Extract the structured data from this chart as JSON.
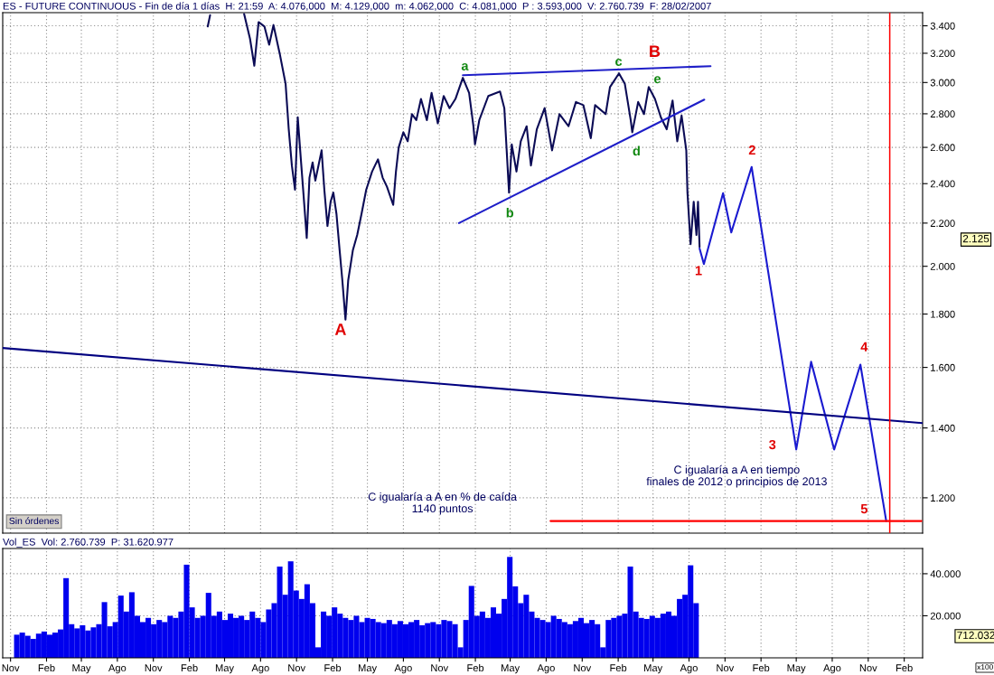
{
  "chart_data": [
    {
      "type": "line",
      "title": "ES - FUTURE CONTINUOUS - Fin de día 1 días  H: 21:59  A: 4.076,000  M: 4.129,000  m: 4.062,000  C: 4.081,000  P : 3.593,000  V: 2.760.739  F: 28/02/2007",
      "series": [
        {
          "color": "#0b0b55",
          "x": [
            "2008-03-19",
            "2008-03-25",
            "2008-05-01",
            "2008-06-20",
            "2008-07-05",
            "2008-07-16",
            "2008-07-27",
            "2008-08-11",
            "2008-08-23",
            "2008-09-03",
            "2008-09-19",
            "2008-10-04",
            "2008-10-12",
            "2008-10-20",
            "2008-10-28",
            "2008-11-04",
            "2008-11-12",
            "2008-11-19",
            "2008-11-27",
            "2008-12-04",
            "2008-12-12",
            "2008-12-19",
            "2008-12-27",
            "2009-01-04",
            "2009-01-11",
            "2009-01-19",
            "2009-01-27",
            "2009-02-03",
            "2009-02-11",
            "2009-02-19",
            "2009-02-26",
            "2009-03-06",
            "2009-03-13",
            "2009-03-25",
            "2009-04-05",
            "2009-04-16",
            "2009-04-28",
            "2009-05-13",
            "2009-05-28",
            "2009-06-09",
            "2009-06-20",
            "2009-07-06",
            "2009-07-13",
            "2009-07-20",
            "2009-08-01",
            "2009-08-12",
            "2009-08-23",
            "2009-09-03",
            "2009-09-15",
            "2009-09-30",
            "2009-10-12",
            "2009-10-28",
            "2009-11-12",
            "2009-11-27",
            "2009-12-12",
            "2009-12-31",
            "2010-01-16",
            "2010-01-27",
            "2010-01-31",
            "2010-02-11",
            "2010-03-06",
            "2010-04-05",
            "2010-04-16",
            "2010-04-28",
            "2010-05-05",
            "2010-05-17",
            "2010-05-28",
            "2010-06-12",
            "2010-06-23",
            "2010-07-08",
            "2010-07-28",
            "2010-08-16",
            "2010-09-04",
            "2010-09-27",
            "2010-10-16",
            "2010-11-04",
            "2010-11-23",
            "2010-12-04",
            "2010-12-31",
            "2011-01-11",
            "2011-02-03",
            "2011-02-18",
            "2011-03-05",
            "2011-03-09",
            "2011-03-24",
            "2011-04-08",
            "2011-04-20",
            "2011-05-06",
            "2011-05-21",
            "2011-06-05",
            "2011-06-20",
            "2011-07-02",
            "2011-07-13",
            "2011-07-25",
            "2011-07-28",
            "2011-08-05",
            "2011-08-13",
            "2011-08-20",
            "2011-08-24",
            "2011-08-28"
          ],
          "values": [
            3395,
            3480,
            null,
            3490,
            3305,
            3113,
            3428,
            3394,
            3261,
            3406,
            3197,
            2991,
            2706,
            2498,
            2368,
            2779,
            2532,
            2337,
            2129,
            2432,
            2515,
            2416,
            2498,
            2583,
            2368,
            2186,
            2306,
            2353,
            2245,
            2073,
            1939,
            1778,
            1939,
            2073,
            2143,
            2245,
            2368,
            2465,
            2532,
            2432,
            2384,
            2290,
            2465,
            2600,
            2688,
            2635,
            2798,
            2761,
            2893,
            2761,
            2932,
            2742,
            2912,
            2835,
            2893,
            3031,
            2932,
            2724,
            2617,
            2761,
            2912,
            2941,
            2835,
            2353,
            2617,
            2465,
            2635,
            2724,
            2498,
            2706,
            2835,
            2583,
            2798,
            2724,
            2874,
            2854,
            2653,
            2854,
            2798,
            2970,
            3061,
            2991,
            2761,
            2688,
            2874,
            2798,
            2970,
            2893,
            2779,
            2706,
            2883,
            2635,
            2789,
            2583,
            2353,
            2100,
            2306,
            2143,
            2306,
            2087
          ]
        },
        {
          "color": "#1a1ad0",
          "x": [
            "2011-08-28",
            "2011-09-08",
            "2011-10-27",
            "2011-11-17",
            "2012-01-08",
            "2012-05-01",
            "2012-06-08",
            "2012-08-06",
            "2012-10-12",
            "2012-12-17"
          ],
          "values": [
            2080,
            2010,
            2350,
            2155,
            2490,
            1335,
            1620,
            1335,
            1610,
            1140
          ]
        },
        {
          "color": "#1e1ec8",
          "x": [
            "2009-12-31",
            "2011-09-25"
          ],
          "values": [
            3049,
            3110
          ]
        },
        {
          "color": "#1e1ec8",
          "x": [
            "2009-12-21",
            "2011-09-09"
          ],
          "values": [
            2200,
            2889
          ]
        },
        {
          "color": "#000080",
          "x": [
            "2006-10-12",
            "2013-03-20"
          ],
          "values": [
            1670,
            1415
          ]
        },
        {
          "color": "#ff0000",
          "x": [
            "2010-08-12",
            "2013-03-17"
          ],
          "values": [
            1140,
            1140
          ]
        }
      ],
      "ref_lines": [
        {
          "axis": "x",
          "value": "2012-12-26",
          "color": "#ff0000"
        }
      ],
      "annotations": [
        "Sin órdenes",
        "C igualaría a A en % de caída\n1140 puntos",
        "C igualaría a A en tiempo\nfinales de 2012 o principios de 2013",
        "2.125",
        "A",
        "a",
        "b",
        "c",
        "d",
        "e",
        "B",
        "1",
        "2",
        "3",
        "4",
        "5"
      ],
      "log": true,
      "ylim": [
        1110,
        3500
      ],
      "yticks": [
        {
          "value": 1200,
          "label": "1.200"
        },
        {
          "value": 1400,
          "label": "1.400"
        },
        {
          "value": 1600,
          "label": "1.600"
        },
        {
          "value": 1800,
          "label": "1.800"
        },
        {
          "value": 2000,
          "label": "2.000"
        },
        {
          "value": 2200,
          "label": "2.200"
        },
        {
          "value": 2400,
          "label": "2.400"
        },
        {
          "value": 2600,
          "label": "2.600"
        },
        {
          "value": 2800,
          "label": "2.800"
        },
        {
          "value": 3000,
          "label": "3.000"
        },
        {
          "value": 3200,
          "label": "3.200"
        },
        {
          "value": 3400,
          "label": "3.400"
        }
      ],
      "xlim": [
        "2006-10-12",
        "2013-03-20"
      ],
      "xticks": [
        {
          "value": "2006-11-01",
          "label": null
        },
        {
          "value": "2007-02-01",
          "label": null
        },
        {
          "value": "2007-05-01",
          "label": null
        },
        {
          "value": "2007-08-01",
          "label": null
        },
        {
          "value": "2007-11-01",
          "label": null
        },
        {
          "value": "2008-02-01",
          "label": null
        },
        {
          "value": "2008-05-01",
          "label": null
        },
        {
          "value": "2008-08-01",
          "label": null
        },
        {
          "value": "2008-11-01",
          "label": null
        },
        {
          "value": "2009-02-01",
          "label": null
        },
        {
          "value": "2009-05-01",
          "label": null
        },
        {
          "value": "2009-08-01",
          "label": null
        },
        {
          "value": "2009-11-01",
          "label": null
        },
        {
          "value": "2010-02-01",
          "label": null
        },
        {
          "value": "2010-05-01",
          "label": null
        },
        {
          "value": "2010-08-01",
          "label": null
        },
        {
          "value": "2010-11-01",
          "label": null
        },
        {
          "value": "2011-02-01",
          "label": null
        },
        {
          "value": "2011-05-01",
          "label": null
        },
        {
          "value": "2011-08-01",
          "label": null
        },
        {
          "value": "2011-11-01",
          "label": null
        },
        {
          "value": "2012-02-01",
          "label": null
        },
        {
          "value": "2012-05-01",
          "label": null
        },
        {
          "value": "2012-08-01",
          "label": null
        },
        {
          "value": "2012-11-01",
          "label": null
        },
        {
          "value": "2013-02-01",
          "label": null
        }
      ],
      "tick_labels": "y",
      "grid": true
    },
    {
      "type": "bar",
      "title": "Vol_ES  Vol: 2.760.739  P: 31.620.977",
      "color": "#0000ee",
      "x": [
        "2006-11-17",
        "2006-12-01",
        "2006-12-15",
        "2006-12-29",
        "2007-01-12",
        "2007-01-26",
        "2007-02-09",
        "2007-02-23",
        "2007-03-09",
        "2007-03-23",
        "2007-04-06",
        "2007-04-20",
        "2007-05-04",
        "2007-05-18",
        "2007-06-01",
        "2007-06-15",
        "2007-06-29",
        "2007-07-13",
        "2007-07-27",
        "2007-08-10",
        "2007-08-24",
        "2007-09-07",
        "2007-09-21",
        "2007-10-05",
        "2007-10-19",
        "2007-11-02",
        "2007-11-16",
        "2007-11-30",
        "2007-12-14",
        "2007-12-28",
        "2008-01-11",
        "2008-01-25",
        "2008-02-08",
        "2008-02-22",
        "2008-03-07",
        "2008-03-21",
        "2008-04-04",
        "2008-04-18",
        "2008-05-02",
        "2008-05-16",
        "2008-05-30",
        "2008-06-13",
        "2008-06-27",
        "2008-07-11",
        "2008-07-25",
        "2008-08-08",
        "2008-08-22",
        "2008-09-05",
        "2008-09-19",
        "2008-10-03",
        "2008-10-17",
        "2008-10-31",
        "2008-11-14",
        "2008-11-28",
        "2008-12-12",
        "2008-12-26",
        "2009-01-09",
        "2009-01-23",
        "2009-02-06",
        "2009-02-20",
        "2009-03-06",
        "2009-03-20",
        "2009-04-03",
        "2009-04-17",
        "2009-05-01",
        "2009-05-15",
        "2009-05-29",
        "2009-06-12",
        "2009-06-26",
        "2009-07-10",
        "2009-07-24",
        "2009-08-07",
        "2009-08-21",
        "2009-09-04",
        "2009-09-18",
        "2009-10-02",
        "2009-10-16",
        "2009-10-30",
        "2009-11-13",
        "2009-11-27",
        "2009-12-11",
        "2009-12-25",
        "2010-01-08",
        "2010-01-22",
        "2010-02-05",
        "2010-02-19",
        "2010-03-05",
        "2010-03-19",
        "2010-04-02",
        "2010-04-16",
        "2010-04-30",
        "2010-05-14",
        "2010-05-28",
        "2010-06-11",
        "2010-06-25",
        "2010-07-09",
        "2010-07-23",
        "2010-08-06",
        "2010-08-20",
        "2010-09-03",
        "2010-09-17",
        "2010-10-01",
        "2010-10-15",
        "2010-10-29",
        "2010-11-12",
        "2010-11-26",
        "2010-12-10",
        "2010-12-24",
        "2011-01-07",
        "2011-01-21",
        "2011-02-04",
        "2011-02-18",
        "2011-03-04",
        "2011-03-18",
        "2011-04-01",
        "2011-04-15",
        "2011-04-29",
        "2011-05-13",
        "2011-05-27",
        "2011-06-10",
        "2011-06-24",
        "2011-07-08",
        "2011-07-22",
        "2011-08-05",
        "2011-08-19"
      ],
      "values": [
        11000,
        12000,
        10500,
        9000,
        11500,
        12500,
        11000,
        12000,
        13500,
        37900,
        16000,
        14000,
        15500,
        13000,
        14500,
        16000,
        26500,
        15000,
        17000,
        29600,
        22000,
        31200,
        20000,
        17000,
        19000,
        16000,
        18000,
        17000,
        20000,
        19000,
        22000,
        44300,
        24000,
        19000,
        20000,
        30900,
        20000,
        22000,
        18000,
        21000,
        19000,
        20000,
        18000,
        22000,
        19000,
        17000,
        23000,
        26000,
        43400,
        30000,
        45900,
        32000,
        28000,
        35000,
        26000,
        5000,
        22000,
        20000,
        24000,
        21000,
        19000,
        18000,
        20000,
        17000,
        19000,
        18500,
        17000,
        16500,
        18000,
        16000,
        17500,
        16000,
        17000,
        18000,
        15500,
        16500,
        17000,
        16000,
        18000,
        17500,
        16000,
        5000,
        18000,
        34200,
        20000,
        22000,
        19000,
        24000,
        21000,
        28000,
        48000,
        34000,
        26000,
        30000,
        22000,
        19000,
        18000,
        17000,
        20000,
        18500,
        17000,
        16000,
        17500,
        19000,
        16500,
        18000,
        16000,
        5000,
        18000,
        19000,
        20000,
        21000,
        43400,
        22000,
        19000,
        18500,
        20000,
        19000,
        21000,
        22000,
        20000,
        28000,
        30000,
        44000,
        26000
      ],
      "annotations": [
        "712.032",
        "x100"
      ],
      "ylim": [
        0,
        52000
      ],
      "yticks": [
        {
          "value": 20000,
          "label": "20.000"
        },
        {
          "value": 40000,
          "label": "40.000"
        }
      ],
      "xlim": [
        "2006-10-12",
        "2013-03-20"
      ],
      "xticks": [
        {
          "value": "2006-11-01",
          "label": "Nov"
        },
        {
          "value": "2007-02-01",
          "label": "Feb"
        },
        {
          "value": "2007-05-01",
          "label": "May"
        },
        {
          "value": "2007-08-01",
          "label": "Ago"
        },
        {
          "value": "2007-11-01",
          "label": "Nov"
        },
        {
          "value": "2008-02-01",
          "label": "Feb"
        },
        {
          "value": "2008-05-01",
          "label": "May"
        },
        {
          "value": "2008-08-01",
          "label": "Ago"
        },
        {
          "value": "2008-11-01",
          "label": "Nov"
        },
        {
          "value": "2009-02-01",
          "label": "Feb"
        },
        {
          "value": "2009-05-01",
          "label": "May"
        },
        {
          "value": "2009-08-01",
          "label": "Ago"
        },
        {
          "value": "2009-11-01",
          "label": "Nov"
        },
        {
          "value": "2010-02-01",
          "label": "Feb"
        },
        {
          "value": "2010-05-01",
          "label": "May"
        },
        {
          "value": "2010-08-01",
          "label": "Ago"
        },
        {
          "value": "2010-11-01",
          "label": "Nov"
        },
        {
          "value": "2011-02-01",
          "label": "Feb"
        },
        {
          "value": "2011-05-01",
          "label": "May"
        },
        {
          "value": "2011-08-01",
          "label": "Ago"
        },
        {
          "value": "2011-11-01",
          "label": "Nov"
        },
        {
          "value": "2012-02-01",
          "label": "Feb"
        },
        {
          "value": "2012-05-01",
          "label": "May"
        },
        {
          "value": "2012-08-01",
          "label": "Ago"
        },
        {
          "value": "2012-11-01",
          "label": "Nov"
        },
        {
          "value": "2013-02-01",
          "label": "Feb"
        }
      ],
      "grid": true
    }
  ]
}
